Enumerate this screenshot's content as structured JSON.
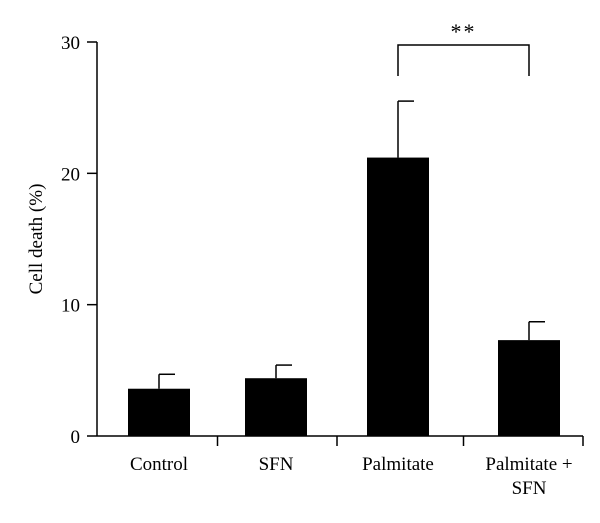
{
  "chart_data": {
    "type": "bar",
    "categories": [
      [
        "Control"
      ],
      [
        "SFN"
      ],
      [
        "Palmitate"
      ],
      [
        "Palmitate +",
        "SFN"
      ]
    ],
    "values": [
      3.6,
      4.4,
      21.2,
      7.3
    ],
    "errors": [
      1.1,
      1.0,
      4.3,
      1.4
    ],
    "ylabel": "Cell death (%)",
    "ylim": [
      0,
      30
    ],
    "yticks": [
      0,
      10,
      20,
      30
    ],
    "bar_color": "#000000",
    "grid": false,
    "legend": "none",
    "significance": {
      "from_category": 2,
      "to_category": 3,
      "level": 30,
      "label": "**"
    }
  }
}
